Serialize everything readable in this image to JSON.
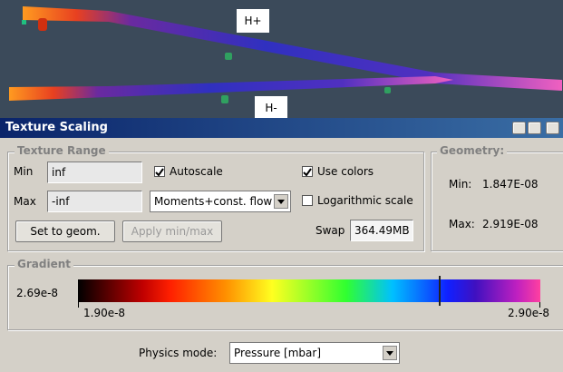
{
  "viewport": {
    "labels": [
      "H+",
      "H-"
    ]
  },
  "window": {
    "title": "Texture Scaling"
  },
  "texture_range": {
    "title": "Texture Range",
    "min_label": "Min",
    "min_value": "inf",
    "max_label": "Max",
    "max_value": "-inf",
    "autoscale": {
      "label": "Autoscale",
      "checked": true
    },
    "use_colors": {
      "label": "Use colors",
      "checked": true
    },
    "logarithmic": {
      "label": "Logarithmic scale",
      "checked": false
    },
    "mode": "Moments+const. flow",
    "set_button": "Set to geom.",
    "apply_button": "Apply min/max",
    "swap_label": "Swap",
    "swap_value": "364.49MB"
  },
  "geometry": {
    "title": "Geometry:",
    "min_label": "Min:",
    "min_value": "1.847E-08",
    "max_label": "Max:",
    "max_value": "2.919E-08"
  },
  "gradient": {
    "title": "Gradient",
    "cursor_label": "2.69e-8",
    "left_label": "1.90e-8",
    "right_label": "2.90e-8"
  },
  "physics": {
    "label": "Physics mode:",
    "value": "Pressure [mbar]"
  }
}
